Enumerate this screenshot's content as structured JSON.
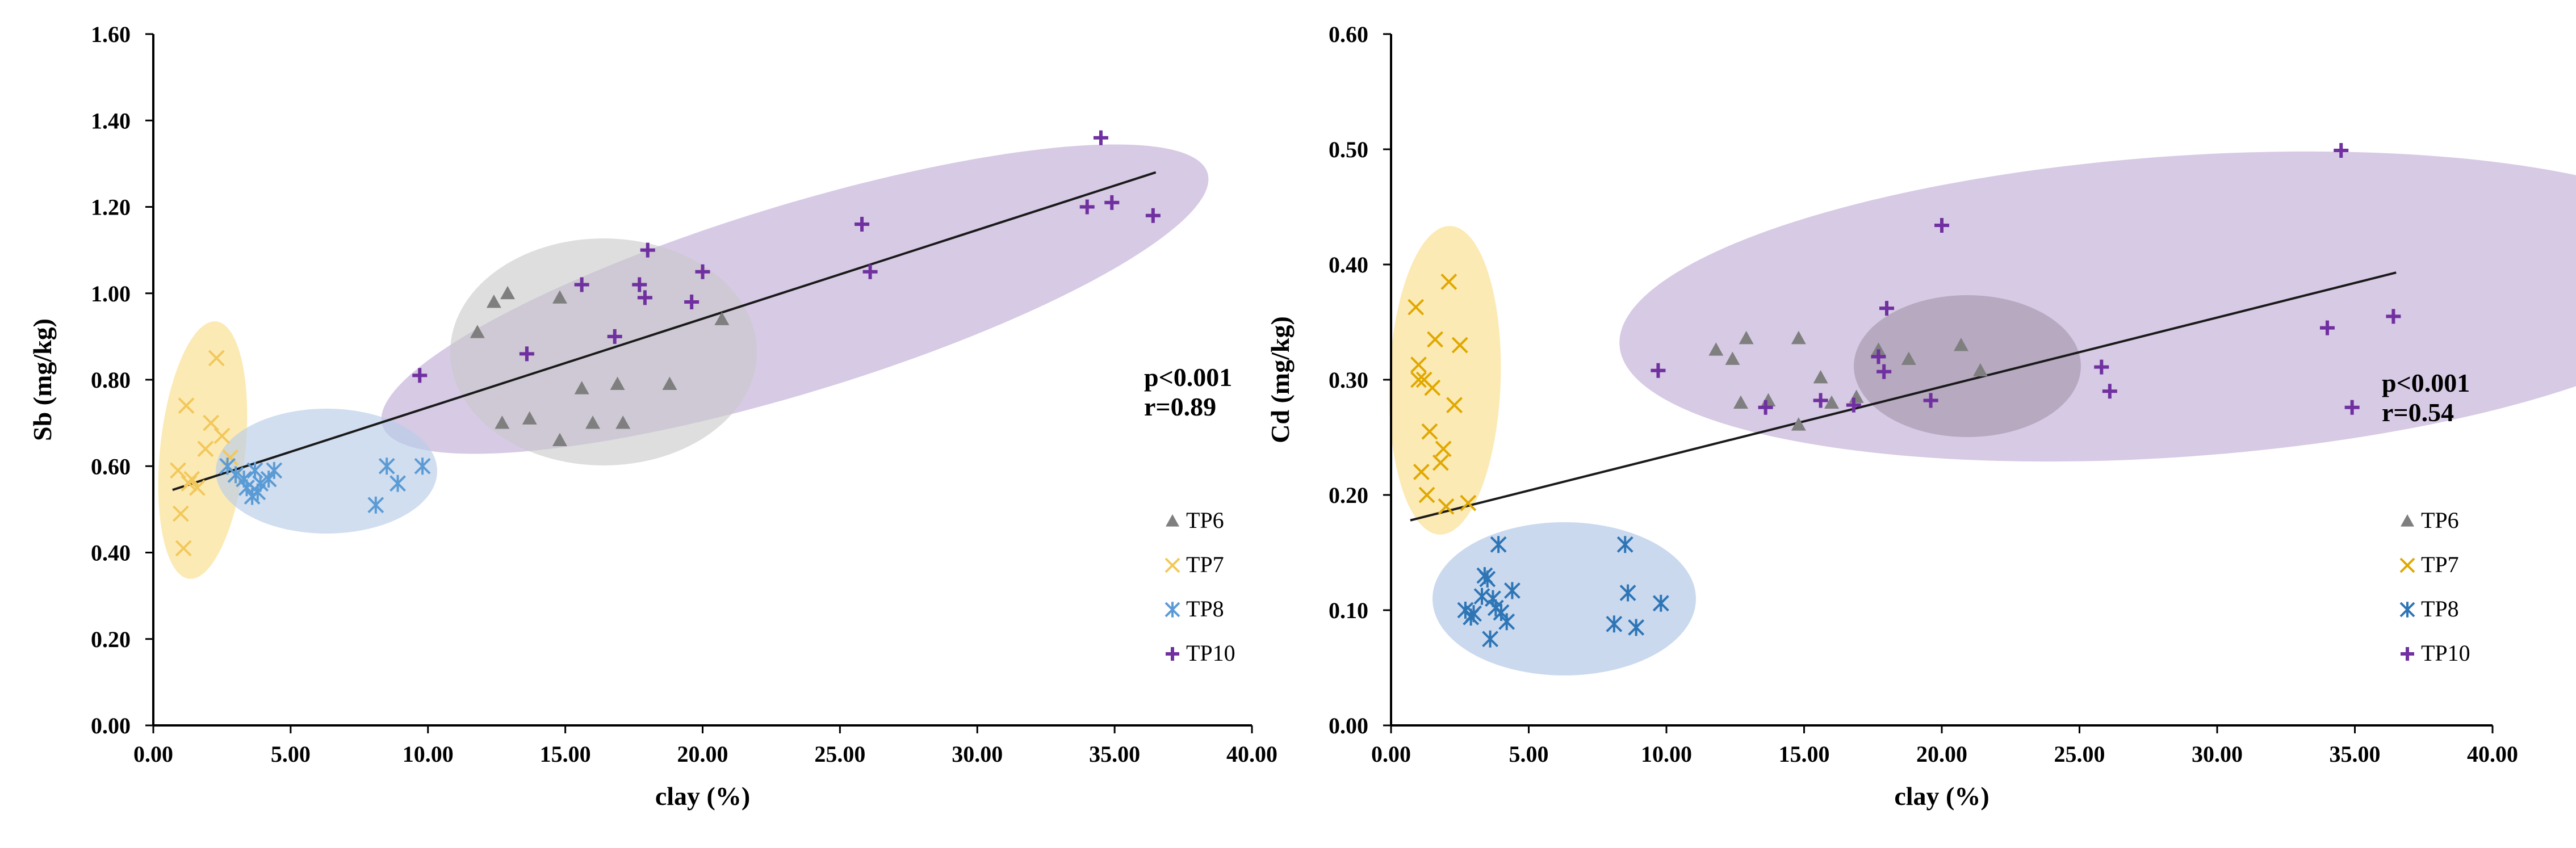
{
  "chart_data": [
    {
      "type": "scatter",
      "xlabel": "clay (%)",
      "ylabel": "Sb (mg/kg)",
      "xlim": [
        0,
        40
      ],
      "ylim": [
        0,
        1.6
      ],
      "xticks": [
        "0.00",
        "5.00",
        "10.00",
        "15.00",
        "20.00",
        "25.00",
        "30.00",
        "35.00",
        "40.00"
      ],
      "yticks": [
        "0.00",
        "0.20",
        "0.40",
        "0.60",
        "0.80",
        "1.00",
        "1.20",
        "1.40",
        "1.60"
      ],
      "stats": [
        "p<0.001",
        "r=0.89"
      ],
      "legend_position": "right",
      "trendline": {
        "x": [
          0.7,
          36.5
        ],
        "y": [
          0.545,
          1.28
        ]
      },
      "series": [
        {
          "name": "TP6",
          "marker": "triangle",
          "color": "#7f7f7f",
          "x": [
            11.8,
            12.4,
            12.9,
            13.7,
            14.8,
            15.6,
            16.9,
            17.1,
            18.8,
            20.7,
            12.7,
            14.8,
            16.0
          ],
          "y": [
            0.91,
            0.98,
            1.0,
            0.71,
            0.99,
            0.78,
            0.79,
            0.7,
            0.79,
            0.94,
            0.7,
            0.66,
            0.7
          ]
        },
        {
          "name": "TP7",
          "marker": "x",
          "color": "#f2c85b",
          "x": [
            0.9,
            1.0,
            1.2,
            1.4,
            1.6,
            1.9,
            2.1,
            2.3,
            2.5,
            1.1,
            1.3,
            2.8
          ],
          "y": [
            0.59,
            0.49,
            0.74,
            0.57,
            0.55,
            0.64,
            0.7,
            0.85,
            0.67,
            0.41,
            0.56,
            0.62
          ]
        },
        {
          "name": "TP8",
          "marker": "star",
          "color": "#5b9bd5",
          "x": [
            2.7,
            3.0,
            3.4,
            3.6,
            3.7,
            3.9,
            4.2,
            4.4,
            8.1,
            8.5,
            8.9,
            9.8,
            3.3,
            3.8
          ],
          "y": [
            0.6,
            0.58,
            0.55,
            0.53,
            0.59,
            0.56,
            0.57,
            0.59,
            0.51,
            0.6,
            0.56,
            0.6,
            0.57,
            0.54
          ]
        },
        {
          "name": "TP10",
          "marker": "plus",
          "color": "#7030a0",
          "x": [
            9.7,
            13.6,
            15.6,
            16.8,
            17.7,
            17.9,
            18.0,
            19.6,
            20.0,
            25.8,
            26.1,
            34.0,
            34.5,
            34.9,
            36.4
          ],
          "y": [
            0.81,
            0.86,
            1.02,
            0.9,
            1.02,
            0.99,
            1.1,
            0.98,
            1.05,
            1.16,
            1.05,
            1.2,
            1.36,
            1.21,
            1.18
          ]
        }
      ]
    },
    {
      "type": "scatter",
      "xlabel": "clay (%)",
      "ylabel": "Cd (mg/kg)",
      "xlim": [
        0,
        40
      ],
      "ylim": [
        0,
        0.6
      ],
      "xticks": [
        "0.00",
        "5.00",
        "10.00",
        "15.00",
        "20.00",
        "25.00",
        "30.00",
        "35.00",
        "40.00"
      ],
      "yticks": [
        "0.00",
        "0.10",
        "0.20",
        "0.30",
        "0.40",
        "0.50",
        "0.60"
      ],
      "stats": [
        "p<0.001",
        "r=0.54"
      ],
      "legend_position": "right",
      "trendline": {
        "x": [
          0.7,
          36.5
        ],
        "y": [
          0.178,
          0.393
        ]
      },
      "series": [
        {
          "name": "TP6",
          "marker": "triangle",
          "color": "#7f7f7f",
          "x": [
            11.8,
            12.4,
            12.9,
            13.7,
            14.8,
            15.6,
            16.9,
            17.7,
            18.8,
            20.7,
            12.7,
            14.8,
            16.0,
            21.4
          ],
          "y": [
            0.326,
            0.318,
            0.336,
            0.282,
            0.336,
            0.302,
            0.285,
            0.326,
            0.318,
            0.33,
            0.28,
            0.261,
            0.28,
            0.308
          ]
        },
        {
          "name": "TP7",
          "marker": "x",
          "color": "#e0a800",
          "x": [
            0.9,
            1.0,
            1.2,
            1.4,
            1.6,
            1.9,
            2.1,
            2.3,
            2.5,
            1.1,
            1.3,
            2.8,
            1.0,
            1.5,
            2.0,
            1.8
          ],
          "y": [
            0.363,
            0.313,
            0.3,
            0.255,
            0.335,
            0.24,
            0.385,
            0.278,
            0.33,
            0.22,
            0.2,
            0.193,
            0.3,
            0.293,
            0.19,
            0.228
          ]
        },
        {
          "name": "TP8",
          "marker": "star",
          "color": "#2e75b6",
          "x": [
            2.7,
            3.0,
            3.4,
            3.6,
            3.7,
            3.9,
            4.2,
            4.4,
            8.1,
            8.5,
            8.9,
            9.8,
            3.3,
            3.8,
            2.9,
            3.5,
            4.0,
            8.6
          ],
          "y": [
            0.1,
            0.097,
            0.13,
            0.075,
            0.11,
            0.157,
            0.09,
            0.117,
            0.088,
            0.157,
            0.085,
            0.106,
            0.112,
            0.102,
            0.094,
            0.127,
            0.098,
            0.115
          ]
        },
        {
          "name": "TP10",
          "marker": "plus",
          "color": "#7030a0",
          "x": [
            9.7,
            13.6,
            15.6,
            16.8,
            17.7,
            17.9,
            18.0,
            19.6,
            20.0,
            25.8,
            26.1,
            34.0,
            34.5,
            34.9,
            36.4
          ],
          "y": [
            0.308,
            0.276,
            0.282,
            0.278,
            0.32,
            0.307,
            0.362,
            0.282,
            0.434,
            0.311,
            0.29,
            0.345,
            0.499,
            0.276,
            0.355
          ]
        }
      ]
    }
  ]
}
